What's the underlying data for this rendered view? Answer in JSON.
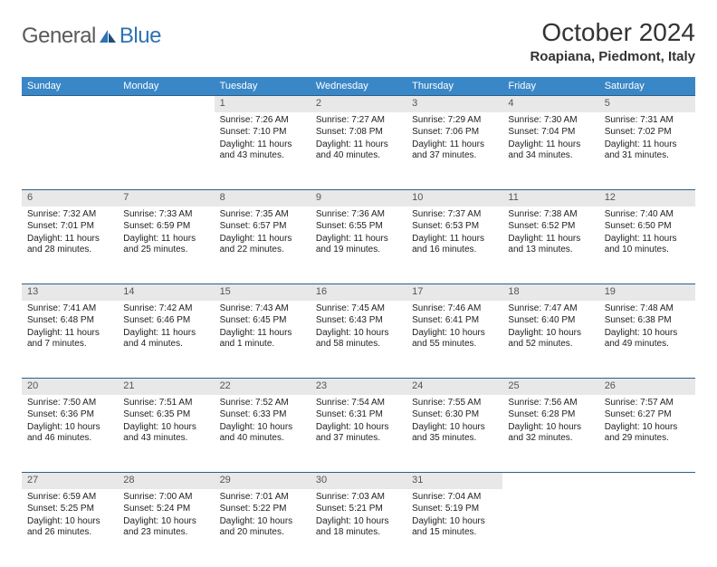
{
  "brand": {
    "text1": "General",
    "text2": "Blue"
  },
  "title": "October 2024",
  "location": "Roapiana, Piedmont, Italy",
  "colors": {
    "header_bg": "#3a87c7",
    "header_text": "#ffffff",
    "divider": "#2b5f8a",
    "daynum_bg": "#e8e8e8",
    "text": "#222222",
    "brand_gray": "#5a5a5a",
    "brand_blue": "#2f72b3"
  },
  "daynames": [
    "Sunday",
    "Monday",
    "Tuesday",
    "Wednesday",
    "Thursday",
    "Friday",
    "Saturday"
  ],
  "weeks": [
    [
      null,
      null,
      {
        "num": "1",
        "sunrise": "Sunrise: 7:26 AM",
        "sunset": "Sunset: 7:10 PM",
        "daylight": "Daylight: 11 hours and 43 minutes."
      },
      {
        "num": "2",
        "sunrise": "Sunrise: 7:27 AM",
        "sunset": "Sunset: 7:08 PM",
        "daylight": "Daylight: 11 hours and 40 minutes."
      },
      {
        "num": "3",
        "sunrise": "Sunrise: 7:29 AM",
        "sunset": "Sunset: 7:06 PM",
        "daylight": "Daylight: 11 hours and 37 minutes."
      },
      {
        "num": "4",
        "sunrise": "Sunrise: 7:30 AM",
        "sunset": "Sunset: 7:04 PM",
        "daylight": "Daylight: 11 hours and 34 minutes."
      },
      {
        "num": "5",
        "sunrise": "Sunrise: 7:31 AM",
        "sunset": "Sunset: 7:02 PM",
        "daylight": "Daylight: 11 hours and 31 minutes."
      }
    ],
    [
      {
        "num": "6",
        "sunrise": "Sunrise: 7:32 AM",
        "sunset": "Sunset: 7:01 PM",
        "daylight": "Daylight: 11 hours and 28 minutes."
      },
      {
        "num": "7",
        "sunrise": "Sunrise: 7:33 AM",
        "sunset": "Sunset: 6:59 PM",
        "daylight": "Daylight: 11 hours and 25 minutes."
      },
      {
        "num": "8",
        "sunrise": "Sunrise: 7:35 AM",
        "sunset": "Sunset: 6:57 PM",
        "daylight": "Daylight: 11 hours and 22 minutes."
      },
      {
        "num": "9",
        "sunrise": "Sunrise: 7:36 AM",
        "sunset": "Sunset: 6:55 PM",
        "daylight": "Daylight: 11 hours and 19 minutes."
      },
      {
        "num": "10",
        "sunrise": "Sunrise: 7:37 AM",
        "sunset": "Sunset: 6:53 PM",
        "daylight": "Daylight: 11 hours and 16 minutes."
      },
      {
        "num": "11",
        "sunrise": "Sunrise: 7:38 AM",
        "sunset": "Sunset: 6:52 PM",
        "daylight": "Daylight: 11 hours and 13 minutes."
      },
      {
        "num": "12",
        "sunrise": "Sunrise: 7:40 AM",
        "sunset": "Sunset: 6:50 PM",
        "daylight": "Daylight: 11 hours and 10 minutes."
      }
    ],
    [
      {
        "num": "13",
        "sunrise": "Sunrise: 7:41 AM",
        "sunset": "Sunset: 6:48 PM",
        "daylight": "Daylight: 11 hours and 7 minutes."
      },
      {
        "num": "14",
        "sunrise": "Sunrise: 7:42 AM",
        "sunset": "Sunset: 6:46 PM",
        "daylight": "Daylight: 11 hours and 4 minutes."
      },
      {
        "num": "15",
        "sunrise": "Sunrise: 7:43 AM",
        "sunset": "Sunset: 6:45 PM",
        "daylight": "Daylight: 11 hours and 1 minute."
      },
      {
        "num": "16",
        "sunrise": "Sunrise: 7:45 AM",
        "sunset": "Sunset: 6:43 PM",
        "daylight": "Daylight: 10 hours and 58 minutes."
      },
      {
        "num": "17",
        "sunrise": "Sunrise: 7:46 AM",
        "sunset": "Sunset: 6:41 PM",
        "daylight": "Daylight: 10 hours and 55 minutes."
      },
      {
        "num": "18",
        "sunrise": "Sunrise: 7:47 AM",
        "sunset": "Sunset: 6:40 PM",
        "daylight": "Daylight: 10 hours and 52 minutes."
      },
      {
        "num": "19",
        "sunrise": "Sunrise: 7:48 AM",
        "sunset": "Sunset: 6:38 PM",
        "daylight": "Daylight: 10 hours and 49 minutes."
      }
    ],
    [
      {
        "num": "20",
        "sunrise": "Sunrise: 7:50 AM",
        "sunset": "Sunset: 6:36 PM",
        "daylight": "Daylight: 10 hours and 46 minutes."
      },
      {
        "num": "21",
        "sunrise": "Sunrise: 7:51 AM",
        "sunset": "Sunset: 6:35 PM",
        "daylight": "Daylight: 10 hours and 43 minutes."
      },
      {
        "num": "22",
        "sunrise": "Sunrise: 7:52 AM",
        "sunset": "Sunset: 6:33 PM",
        "daylight": "Daylight: 10 hours and 40 minutes."
      },
      {
        "num": "23",
        "sunrise": "Sunrise: 7:54 AM",
        "sunset": "Sunset: 6:31 PM",
        "daylight": "Daylight: 10 hours and 37 minutes."
      },
      {
        "num": "24",
        "sunrise": "Sunrise: 7:55 AM",
        "sunset": "Sunset: 6:30 PM",
        "daylight": "Daylight: 10 hours and 35 minutes."
      },
      {
        "num": "25",
        "sunrise": "Sunrise: 7:56 AM",
        "sunset": "Sunset: 6:28 PM",
        "daylight": "Daylight: 10 hours and 32 minutes."
      },
      {
        "num": "26",
        "sunrise": "Sunrise: 7:57 AM",
        "sunset": "Sunset: 6:27 PM",
        "daylight": "Daylight: 10 hours and 29 minutes."
      }
    ],
    [
      {
        "num": "27",
        "sunrise": "Sunrise: 6:59 AM",
        "sunset": "Sunset: 5:25 PM",
        "daylight": "Daylight: 10 hours and 26 minutes."
      },
      {
        "num": "28",
        "sunrise": "Sunrise: 7:00 AM",
        "sunset": "Sunset: 5:24 PM",
        "daylight": "Daylight: 10 hours and 23 minutes."
      },
      {
        "num": "29",
        "sunrise": "Sunrise: 7:01 AM",
        "sunset": "Sunset: 5:22 PM",
        "daylight": "Daylight: 10 hours and 20 minutes."
      },
      {
        "num": "30",
        "sunrise": "Sunrise: 7:03 AM",
        "sunset": "Sunset: 5:21 PM",
        "daylight": "Daylight: 10 hours and 18 minutes."
      },
      {
        "num": "31",
        "sunrise": "Sunrise: 7:04 AM",
        "sunset": "Sunset: 5:19 PM",
        "daylight": "Daylight: 10 hours and 15 minutes."
      },
      null,
      null
    ]
  ]
}
